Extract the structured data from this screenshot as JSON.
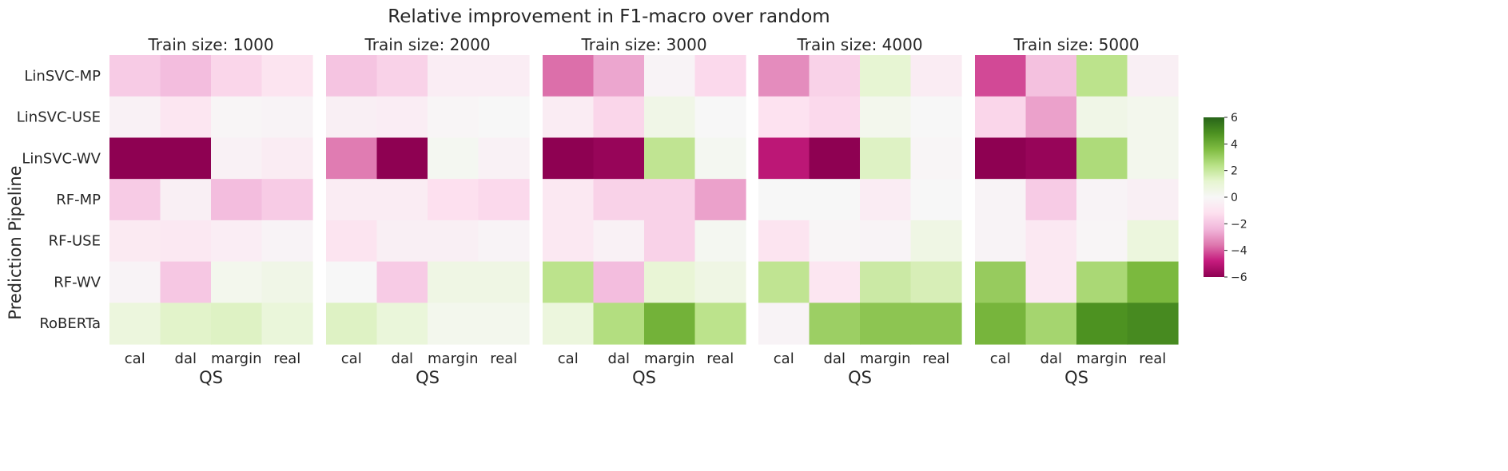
{
  "title": "Relative improvement in F1-macro over random",
  "chart_data": {
    "type": "heatmap",
    "title": "Relative improvement in F1-macro over random",
    "ylabel": "Prediction Pipeline",
    "xlabel": "QS",
    "rows": [
      "LinSVC-MP",
      "LinSVC-USE",
      "LinSVC-WV",
      "RF-MP",
      "RF-USE",
      "RF-WV",
      "RoBERTa"
    ],
    "columns": [
      "cal",
      "dal",
      "margin",
      "real"
    ],
    "colorbar": {
      "min": -6,
      "max": 6,
      "ticks": [
        6,
        4,
        2,
        0,
        -2,
        -4,
        -6
      ],
      "tick_labels": [
        "6",
        "4",
        "2",
        "0",
        "−2",
        "−4",
        "−6"
      ],
      "colormap": "PiYG",
      "stops": [
        "#8e0152",
        "#c51b7d",
        "#de77ae",
        "#f1b6da",
        "#fde0ef",
        "#f7f7f7",
        "#e6f5d0",
        "#b8e186",
        "#7fbc41",
        "#4d9221",
        "#276419"
      ]
    },
    "panels": [
      {
        "title": "Train size: 1000",
        "values": [
          [
            -1.8,
            -2.2,
            -1.5,
            -1.0
          ],
          [
            -0.3,
            -0.9,
            -0.1,
            -0.2
          ],
          [
            -6.0,
            -6.0,
            -0.3,
            -0.6
          ],
          [
            -1.8,
            -0.4,
            -2.2,
            -1.8
          ],
          [
            -0.7,
            -0.8,
            -0.5,
            -0.2
          ],
          [
            -0.2,
            -1.9,
            0.3,
            0.5
          ],
          [
            0.8,
            1.3,
            1.4,
            0.9
          ]
        ]
      },
      {
        "title": "Train size: 2000",
        "values": [
          [
            -2.0,
            -1.6,
            -0.5,
            -0.5
          ],
          [
            -0.4,
            -0.5,
            -0.1,
            0.0
          ],
          [
            -3.5,
            -6.0,
            0.2,
            -0.3
          ],
          [
            -0.6,
            -0.6,
            -1.2,
            -1.4
          ],
          [
            -1.0,
            -0.4,
            -0.4,
            -0.2
          ],
          [
            0.0,
            -1.8,
            0.6,
            0.6
          ],
          [
            1.4,
            0.9,
            0.3,
            0.3
          ]
        ]
      },
      {
        "title": "Train size: 3000",
        "values": [
          [
            -3.7,
            -2.7,
            -0.2,
            -1.4
          ],
          [
            -0.6,
            -1.5,
            0.5,
            0.0
          ],
          [
            -6.0,
            -5.8,
            2.2,
            0.2
          ],
          [
            -0.8,
            -1.6,
            -1.6,
            -2.8
          ],
          [
            -0.8,
            -0.3,
            -1.6,
            0.2
          ],
          [
            2.3,
            -2.2,
            1.0,
            0.6
          ],
          [
            0.8,
            2.5,
            3.9,
            2.3
          ]
        ]
      },
      {
        "title": "Train size: 4000",
        "values": [
          [
            -3.2,
            -1.6,
            1.1,
            -0.6
          ],
          [
            -1.1,
            -1.4,
            0.3,
            0.0
          ],
          [
            -5.0,
            -6.0,
            1.4,
            -0.1
          ],
          [
            0.0,
            0.0,
            -0.6,
            0.0
          ],
          [
            -1.0,
            -0.1,
            -0.2,
            0.6
          ],
          [
            2.2,
            -0.9,
            1.9,
            1.6
          ],
          [
            -0.2,
            3.0,
            3.3,
            3.3
          ]
        ]
      },
      {
        "title": "Train size: 5000",
        "values": [
          [
            -4.2,
            -2.1,
            2.3,
            -0.4
          ],
          [
            -1.5,
            -2.8,
            0.5,
            0.3
          ],
          [
            -6.0,
            -5.8,
            2.6,
            0.3
          ],
          [
            -0.2,
            -1.8,
            -0.2,
            -0.4
          ],
          [
            -0.2,
            -0.8,
            -0.1,
            0.8
          ],
          [
            3.1,
            -0.8,
            2.7,
            3.7
          ],
          [
            3.8,
            2.8,
            4.8,
            5.0
          ]
        ]
      }
    ]
  }
}
